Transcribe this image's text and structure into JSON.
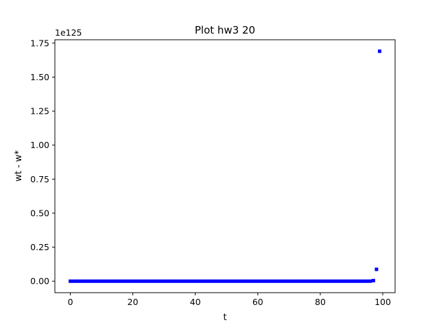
{
  "chart_data": {
    "type": "scatter",
    "title": "Plot hw3 20",
    "xlabel": "t",
    "ylabel": "wt - w*",
    "offset_label": "1e125",
    "x_range": [
      -4.95,
      103.95
    ],
    "y_range": [
      -0.0845,
      1.7745
    ],
    "x_ticks": [
      0,
      20,
      40,
      60,
      80,
      100
    ],
    "x_tick_labels": [
      "0",
      "20",
      "40",
      "60",
      "80",
      "100"
    ],
    "y_ticks": [
      0.0,
      0.25,
      0.5,
      0.75,
      1.0,
      1.25,
      1.5,
      1.75
    ],
    "y_tick_labels": [
      "0.00",
      "0.25",
      "0.50",
      "0.75",
      "1.00",
      "1.25",
      "1.50",
      "1.75"
    ],
    "grid": false,
    "legend": "none",
    "marker_color": "#0000ff",
    "series": [
      {
        "x": [
          0,
          1,
          2,
          3,
          4,
          5,
          6,
          7,
          8,
          9,
          10,
          11,
          12,
          13,
          14,
          15,
          16,
          17,
          18,
          19,
          20,
          21,
          22,
          23,
          24,
          25,
          26,
          27,
          28,
          29,
          30,
          31,
          32,
          33,
          34,
          35,
          36,
          37,
          38,
          39,
          40,
          41,
          42,
          43,
          44,
          45,
          46,
          47,
          48,
          49,
          50,
          51,
          52,
          53,
          54,
          55,
          56,
          57,
          58,
          59,
          60,
          61,
          62,
          63,
          64,
          65,
          66,
          67,
          68,
          69,
          70,
          71,
          72,
          73,
          74,
          75,
          76,
          77,
          78,
          79,
          80,
          81,
          82,
          83,
          84,
          85,
          86,
          87,
          88,
          89,
          90,
          91,
          92,
          93,
          94,
          95,
          96,
          97,
          98,
          99
        ],
        "y": [
          0,
          0,
          0,
          0,
          0,
          0,
          0,
          0,
          0,
          0,
          0,
          0,
          0,
          0,
          0,
          0,
          0,
          0,
          0,
          0,
          0,
          0,
          0,
          0,
          0,
          0,
          0,
          0,
          0,
          0,
          0,
          0,
          0,
          0,
          0,
          0,
          0,
          0,
          0,
          0,
          0,
          0,
          0,
          0,
          0,
          0,
          0,
          0,
          0,
          0,
          0,
          0,
          0,
          0,
          0,
          0,
          0,
          0,
          0,
          0,
          0,
          0,
          0,
          0,
          0,
          0,
          0,
          0,
          0,
          0,
          0,
          0,
          0,
          0,
          0,
          0,
          0,
          0,
          0,
          0,
          0,
          0,
          0,
          0,
          0,
          0,
          0,
          0,
          0,
          0,
          0,
          0,
          0,
          0,
          0,
          0,
          0.00022,
          0.0045,
          0.087,
          1.69
        ]
      }
    ]
  }
}
